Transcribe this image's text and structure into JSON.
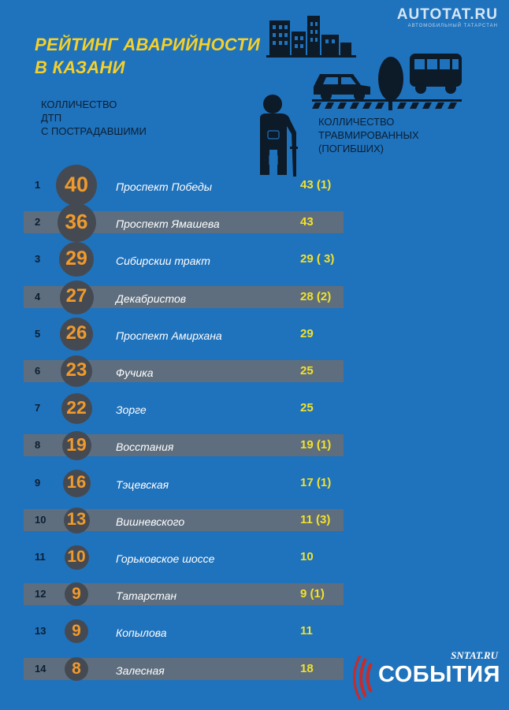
{
  "logo_top": {
    "brand": "AUTOTAT.RU",
    "tagline": "АВТОМОБИЛЬНЫЙ ТАТАРСТАН"
  },
  "title": {
    "line1": "РЕЙТИНГ АВАРИЙНОСТИ",
    "line2": "В КАЗАНИ"
  },
  "header_left": {
    "line1": "КОЛЛИЧЕСТВО",
    "line2": "ДТП",
    "line3": "С ПОСТРАДАВШИМИ"
  },
  "header_right": {
    "line1": "КОЛЛИЧЕСТВО",
    "line2": "ТРАВМИРОВАННЫХ",
    "line3": "(ПОГИБШИХ)"
  },
  "logo_bottom": {
    "site": "SNTAT.RU",
    "word": "СОБЫТИЯ"
  },
  "colors": {
    "background": "#1f72bc",
    "band": "#5e6e7e",
    "circle": "#454a52",
    "count": "#f09a2c",
    "injured": "#f3e12c",
    "title": "#f5d02a"
  },
  "chart_data": {
    "type": "table",
    "title": "РЕЙТИНГ АВАРИЙНОСТИ В КАЗАНИ",
    "columns": [
      "КОЛЛИЧЕСТВО ДТП С ПОСТРАДАВШИМИ",
      "КОЛЛИЧЕСТВО ТРАВМИРОВАННЫХ (ПОГИБШИХ)"
    ],
    "rows": [
      {
        "rank": "1",
        "accidents": 40,
        "street": "Проспект Победы",
        "injured": "43 (1)"
      },
      {
        "rank": "2",
        "accidents": 36,
        "street": "Проспект Ямашева",
        "injured": "43"
      },
      {
        "rank": "3",
        "accidents": 29,
        "street": "Сибирскии тракт",
        "injured": "29 ( 3)"
      },
      {
        "rank": "4",
        "accidents": 27,
        "street": "Декабристов",
        "injured": "28 (2)"
      },
      {
        "rank": "5",
        "accidents": 26,
        "street": "Проспект Амирхана",
        "injured": "29"
      },
      {
        "rank": "6",
        "accidents": 23,
        "street": "Фучика",
        "injured": "25"
      },
      {
        "rank": "7",
        "accidents": 22,
        "street": "Зорге",
        "injured": "25"
      },
      {
        "rank": "8",
        "accidents": 19,
        "street": "Восстания",
        "injured": "19 (1)"
      },
      {
        "rank": "9",
        "accidents": 16,
        "street": "Тэцевская",
        "injured": "17 (1)"
      },
      {
        "rank": "10",
        "accidents": 13,
        "street": "Вишневского",
        "injured": "11 (3)"
      },
      {
        "rank": "11",
        "accidents": 10,
        "street": "Горьковское шоссе",
        "injured": "10"
      },
      {
        "rank": "12",
        "accidents": 9,
        "street": "Татарстан",
        "injured": "9 (1)"
      },
      {
        "rank": "13",
        "accidents": 9,
        "street": "Копылова",
        "injured": "11"
      },
      {
        "rank": "14",
        "accidents": 8,
        "street": "Залесная",
        "injured": "18"
      }
    ]
  }
}
